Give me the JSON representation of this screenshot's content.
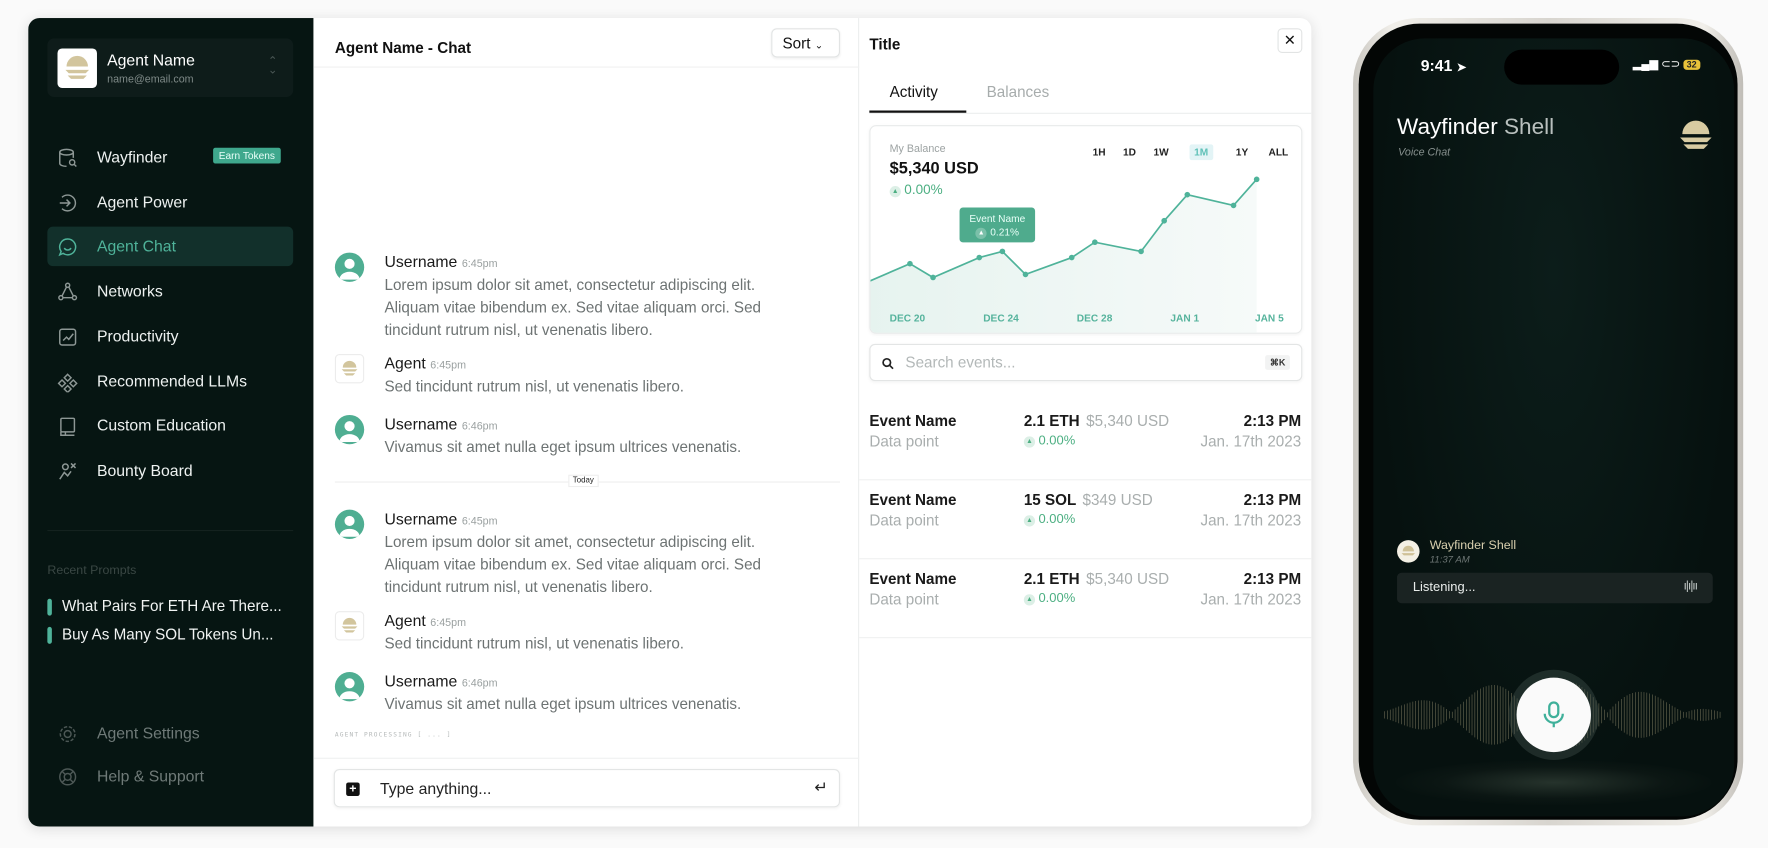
{
  "sidebar": {
    "profile": {
      "name": "Agent Name",
      "email": "name@email.com"
    },
    "items": [
      {
        "label": "Wayfinder",
        "icon": "database-search-icon",
        "badge": "Earn Tokens"
      },
      {
        "label": "Agent Power",
        "icon": "arrow-circle-right-icon"
      },
      {
        "label": "Agent Chat",
        "icon": "chat-bubble-icon",
        "active": true
      },
      {
        "label": "Networks",
        "icon": "network-icon"
      },
      {
        "label": "Productivity",
        "icon": "chart-icon"
      },
      {
        "label": "Recommended LLMs",
        "icon": "nodes-icon"
      },
      {
        "label": "Custom Education",
        "icon": "book-icon"
      },
      {
        "label": "Bounty Board",
        "icon": "target-icon"
      }
    ],
    "recent_label": "Recent Prompts",
    "recent": [
      "What Pairs For ETH Are There...",
      "Buy As Many SOL Tokens Un..."
    ],
    "footer": [
      {
        "label": "Agent Settings",
        "icon": "gear-icon"
      },
      {
        "label": "Help & Support",
        "icon": "lifebuoy-icon"
      }
    ]
  },
  "chat": {
    "title": "Agent Name - Chat",
    "sort_label": "Sort",
    "messages": [
      {
        "author": "Username",
        "time": "6:45pm",
        "text": "Lorem ipsum dolor sit amet, consectetur adipiscing elit.",
        "text2": "Aliquam vitae bibendum ex. Sed vitae aliquam orci. Sed tincidunt rutrum nisl, ut venenatis libero."
      },
      {
        "author": "Agent",
        "time": "6:45pm",
        "text": "Sed tincidunt rutrum nisl, ut venenatis libero."
      },
      {
        "author": "Username",
        "time": "6:46pm",
        "text": "Vivamus sit amet nulla eget ipsum ultrices venenatis."
      },
      {
        "author": "Username",
        "time": "6:45pm",
        "text": "Lorem ipsum dolor sit amet, consectetur adipiscing elit.",
        "text2": "Aliquam vitae bibendum ex. Sed vitae aliquam orci. Sed tincidunt rutrum nisl, ut venenatis libero."
      },
      {
        "author": "Agent",
        "time": "6:45pm",
        "text": "Sed tincidunt rutrum nisl, ut venenatis libero."
      },
      {
        "author": "Username",
        "time": "6:46pm",
        "text": "Vivamus sit amet nulla eget ipsum ultrices venenatis."
      }
    ],
    "divider": "Today",
    "processing": "AGENT PROCESSING [ ... ]",
    "input_placeholder": "Type anything..."
  },
  "panel": {
    "title": "Title",
    "tabs": [
      "Activity",
      "Balances"
    ],
    "balance_label": "My Balance",
    "balance": "$5,340 USD",
    "balance_change": "0.00%",
    "ranges": [
      "1H",
      "1D",
      "1W",
      "1M",
      "1Y",
      "ALL"
    ],
    "selected_range": "1M",
    "search_placeholder": "Search events...",
    "search_shortcut": "⌘K",
    "events": [
      {
        "name": "Event Name",
        "sub": "Data point",
        "amount": "2.1 ETH",
        "usd": "$5,340 USD",
        "change": "0.00%",
        "time": "2:13 PM",
        "date": "Jan. 17th 2023"
      },
      {
        "name": "Event Name",
        "sub": "Data point",
        "amount": "15 SOL",
        "usd": "$349 USD",
        "change": "0.00%",
        "time": "2:13 PM",
        "date": "Jan. 17th 2023"
      },
      {
        "name": "Event Name",
        "sub": "Data point",
        "amount": "2.1 ETH",
        "usd": "$5,340 USD",
        "change": "0.00%",
        "time": "2:13 PM",
        "date": "Jan. 17th 2023"
      }
    ]
  },
  "chart_data": {
    "type": "area",
    "x": [
      "Dec 18",
      "Dec 20",
      "Dec 21",
      "Dec 23",
      "Dec 24",
      "Dec 25",
      "Dec 27",
      "Dec 28",
      "Dec 30",
      "Dec 31",
      "Jan 1",
      "Jan 3",
      "Jan 4"
    ],
    "values": [
      31,
      44,
      35,
      48,
      52,
      37,
      48,
      58,
      52,
      72,
      89,
      82,
      99
    ],
    "x_tick_labels": [
      "DEC 20",
      "DEC 24",
      "DEC 28",
      "JAN 1",
      "JAN 5"
    ],
    "annotation": {
      "label": "Event Name",
      "change": "0.21%",
      "at": "Dec 24"
    },
    "grid": false,
    "color": "#4fb39a"
  },
  "phone": {
    "clock": "9:41",
    "battery": "32",
    "title_bold": "Wayfinder",
    "title_light": "Shell",
    "subtitle": "Voice Chat",
    "bot_name": "Wayfinder Shell",
    "bot_time": "11:37 AM",
    "listening": "Listening..."
  },
  "colors": {
    "accent": "#4fb39a",
    "sidebar_bg": "#061512",
    "gold": "#d8cba2"
  }
}
